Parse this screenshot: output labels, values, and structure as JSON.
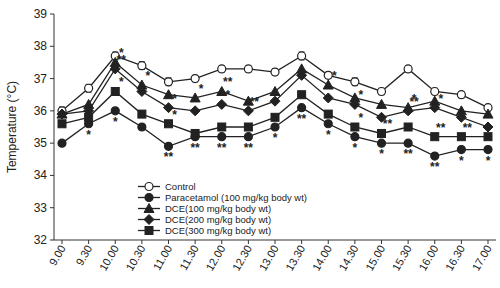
{
  "chart_data": {
    "type": "line",
    "y_label": "Temperature (°C)",
    "categories": [
      "9.00",
      "9.30",
      "10.00",
      "10.30",
      "11.00",
      "11.30",
      "12.00",
      "12.30",
      "13.00",
      "13.30",
      "14.00",
      "14.30",
      "15.00",
      "15.30",
      "16.00",
      "16.30",
      "17.00"
    ],
    "ylim": [
      32,
      39
    ],
    "yticks": [
      32,
      33,
      34,
      35,
      36,
      37,
      38,
      39
    ],
    "grid": false,
    "legend": "lower left",
    "series": [
      {
        "name": "Control",
        "color": "#222222",
        "marker": "circle-open",
        "line_style": "solid",
        "values": [
          36.0,
          36.7,
          37.7,
          37.4,
          36.9,
          37.0,
          37.3,
          37.3,
          37.2,
          37.7,
          37.1,
          36.9,
          36.6,
          37.3,
          36.6,
          36.5,
          36.1
        ],
        "errors": [
          0.12,
          0.12,
          0.12,
          0.12,
          0.12,
          0.1,
          0.1,
          0.1,
          0.1,
          0.12,
          0.1,
          0.12,
          0.1,
          0.1,
          0.1,
          0.1,
          0.1
        ],
        "significance": [
          null,
          null,
          null,
          null,
          null,
          null,
          null,
          null,
          null,
          null,
          null,
          null,
          null,
          null,
          null,
          null,
          null
        ]
      },
      {
        "name": "Paracetamol (100 mg/kg body wt)",
        "color": "#222222",
        "marker": "circle",
        "line_style": "solid",
        "values": [
          35.0,
          35.6,
          36.0,
          35.5,
          34.9,
          35.2,
          35.2,
          35.2,
          35.5,
          36.1,
          35.6,
          35.2,
          35.0,
          35.0,
          34.6,
          34.8,
          34.8
        ],
        "significance": [
          null,
          "*",
          "*",
          null,
          "**",
          "**",
          "**",
          "**",
          "*",
          "**",
          "*",
          "*",
          "*",
          "**",
          "**",
          "*",
          "*"
        ]
      },
      {
        "name": "DCE(100 mg/kg body wt)",
        "color": "#222222",
        "marker": "triangle",
        "line_style": "solid",
        "values": [
          35.9,
          36.2,
          37.5,
          36.8,
          36.5,
          36.4,
          36.6,
          36.3,
          36.6,
          37.3,
          36.8,
          36.4,
          36.2,
          36.1,
          36.3,
          36.0,
          35.9
        ],
        "significance": [
          null,
          null,
          "*",
          "*",
          null,
          "*",
          "**",
          null,
          null,
          null,
          "*",
          null,
          null,
          "*",
          null,
          null,
          null
        ]
      },
      {
        "name": "DCE(200 mg/kg body wt)",
        "color": "#222222",
        "marker": "diamond",
        "line_style": "solid",
        "values": [
          35.9,
          36.0,
          37.3,
          36.6,
          36.1,
          36.0,
          36.2,
          36.0,
          36.3,
          37.1,
          36.4,
          36.2,
          35.8,
          36.0,
          36.1,
          35.8,
          35.5
        ],
        "significance": [
          null,
          null,
          "**",
          null,
          "*",
          null,
          "*",
          "**",
          null,
          null,
          null,
          "*",
          null,
          "**",
          "*",
          null,
          null
        ]
      },
      {
        "name": "DCE(300 mg/kg body wt)",
        "color": "#222222",
        "marker": "square",
        "line_style": "solid",
        "values": [
          35.6,
          35.8,
          36.6,
          35.9,
          35.6,
          35.3,
          35.5,
          35.5,
          35.8,
          36.5,
          35.9,
          35.5,
          35.3,
          35.5,
          35.2,
          35.2,
          35.2
        ],
        "significance": [
          null,
          null,
          "*",
          null,
          "*",
          null,
          null,
          null,
          null,
          null,
          null,
          "*",
          "**",
          null,
          "**",
          "**",
          null
        ]
      }
    ]
  }
}
